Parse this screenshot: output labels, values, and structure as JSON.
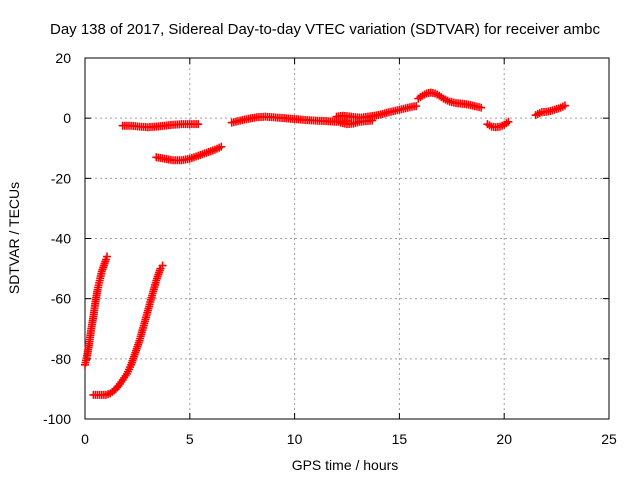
{
  "chart_data": {
    "type": "scatter",
    "title": "Day 138 of 2017, Sidereal Day-to-day VTEC variation (SDTVAR) for receiver ambc",
    "xlabel": "GPS time / hours",
    "ylabel": "SDTVAR / TECUs",
    "xlim": [
      0,
      25
    ],
    "ylim": [
      -100,
      20
    ],
    "xticks": [
      0,
      5,
      10,
      15,
      20,
      25
    ],
    "yticks": [
      -100,
      -80,
      -60,
      -40,
      -20,
      0,
      20
    ],
    "xtick_labels": [
      "0",
      "5",
      "10",
      "15",
      "20",
      "25"
    ],
    "ytick_labels": [
      "-100",
      "-80",
      "-60",
      "-40",
      "-20",
      "0",
      "20"
    ],
    "grid": true,
    "marker": "+",
    "color": "#ff0000",
    "series": [
      {
        "name": "arc-1",
        "x": [
          0.0,
          0.1,
          0.2,
          0.3,
          0.4,
          0.5,
          0.6,
          0.7,
          0.8,
          0.9,
          1.0,
          1.05
        ],
        "y": [
          -82,
          -79,
          -75,
          -70,
          -66,
          -61,
          -57,
          -54,
          -51,
          -49,
          -47,
          -46
        ]
      },
      {
        "name": "arc-2",
        "x": [
          0.4,
          0.6,
          0.8,
          1.0,
          1.2,
          1.4,
          1.6,
          1.8,
          2.0,
          2.2,
          2.4,
          2.6,
          2.8,
          3.0,
          3.2,
          3.4,
          3.6,
          3.7
        ],
        "y": [
          -92,
          -92,
          -92,
          -92,
          -91.5,
          -90.5,
          -89,
          -87,
          -85,
          -82,
          -78,
          -74,
          -69,
          -64,
          -59,
          -54,
          -50,
          -49
        ]
      },
      {
        "name": "arc-3",
        "x": [
          1.8,
          2.2,
          2.6,
          3.0,
          3.4,
          3.8,
          4.2,
          4.6,
          5.0,
          5.4
        ],
        "y": [
          -2.5,
          -2.5,
          -2.8,
          -3.0,
          -2.8,
          -2.5,
          -2.2,
          -2.0,
          -2.0,
          -2.0
        ]
      },
      {
        "name": "arc-4",
        "x": [
          3.4,
          3.8,
          4.2,
          4.6,
          5.0,
          5.4,
          5.8,
          6.2,
          6.5
        ],
        "y": [
          -13,
          -13.5,
          -14,
          -14,
          -13.5,
          -12.5,
          -11.5,
          -10.5,
          -9.5
        ]
      },
      {
        "name": "arc-5",
        "x": [
          7.0,
          7.4,
          7.8,
          8.2,
          8.6,
          9.0,
          9.5,
          10.0,
          10.5,
          11.0,
          11.5,
          12.0,
          12.5
        ],
        "y": [
          -1.5,
          -0.8,
          -0.2,
          0.3,
          0.5,
          0.3,
          0.0,
          -0.3,
          -0.6,
          -0.8,
          -1.0,
          -1.2,
          -1.0
        ]
      },
      {
        "name": "arc-6",
        "x": [
          12.0,
          12.3,
          12.6,
          12.9,
          13.2,
          13.5,
          13.8,
          14.1,
          14.4,
          14.7,
          15.0,
          15.3,
          15.6,
          15.8
        ],
        "y": [
          0.5,
          0.8,
          0.6,
          0.3,
          0.2,
          0.5,
          0.8,
          1.2,
          1.8,
          2.3,
          2.8,
          3.3,
          3.8,
          4.0
        ]
      },
      {
        "name": "arc-7",
        "x": [
          12.2,
          12.5,
          12.8,
          13.1,
          13.4,
          13.7
        ],
        "y": [
          -1.5,
          -2.0,
          -1.8,
          -1.2,
          -1.0,
          -0.8
        ]
      },
      {
        "name": "arc-8",
        "x": [
          15.9,
          16.1,
          16.3,
          16.5,
          16.7,
          16.9,
          17.1,
          17.4,
          17.7,
          18.0,
          18.3,
          18.6,
          18.9
        ],
        "y": [
          6.5,
          7.5,
          8.2,
          8.5,
          8.2,
          7.5,
          6.5,
          5.5,
          5.0,
          4.8,
          4.5,
          4.0,
          3.5
        ]
      },
      {
        "name": "arc-9",
        "x": [
          19.2,
          19.4,
          19.6,
          19.8,
          20.0,
          20.2
        ],
        "y": [
          -2.0,
          -2.8,
          -3.0,
          -2.8,
          -2.2,
          -1.2
        ]
      },
      {
        "name": "arc-10",
        "x": [
          21.5,
          21.8,
          22.1,
          22.4,
          22.7,
          22.9
        ],
        "y": [
          1.0,
          2.0,
          2.2,
          2.8,
          3.5,
          4.2
        ]
      }
    ]
  }
}
